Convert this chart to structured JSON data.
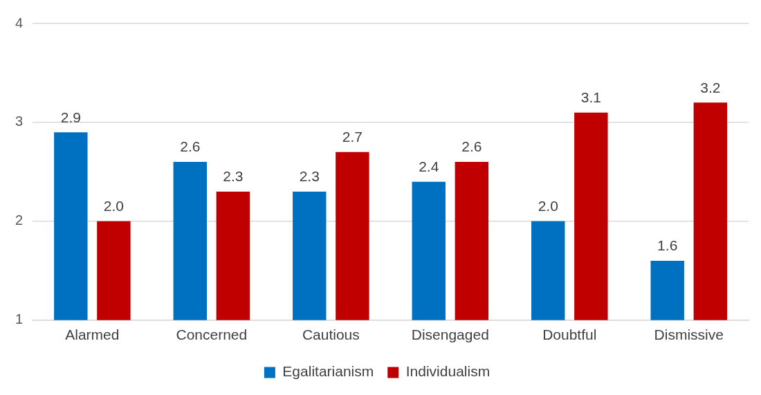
{
  "chart_data": {
    "type": "bar",
    "categories": [
      "Alarmed",
      "Concerned",
      "Cautious",
      "Disengaged",
      "Doubtful",
      "Dismissive"
    ],
    "series": [
      {
        "name": "Egalitarianism",
        "color": "#0070c0",
        "values": [
          2.9,
          2.6,
          2.3,
          2.4,
          2.0,
          1.6
        ],
        "value_labels": [
          "2.9",
          "2.6",
          "2.3",
          "2.4",
          "2.0",
          "1.6"
        ]
      },
      {
        "name": "Individualism",
        "color": "#c00000",
        "values": [
          2.0,
          2.3,
          2.7,
          2.6,
          3.1,
          3.2
        ],
        "value_labels": [
          "2.0",
          "2.3",
          "2.7",
          "2.6",
          "3.1",
          "3.2"
        ]
      }
    ],
    "ylim": [
      1,
      4
    ],
    "yticks": [
      1,
      2,
      3,
      4
    ],
    "grid": "y",
    "legend": "bottom"
  }
}
